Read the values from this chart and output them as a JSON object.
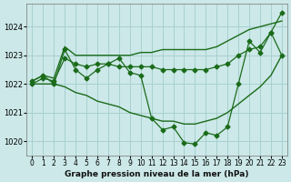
{
  "title": "Graphe pression niveau de la mer (hPa)",
  "x_labels": [
    "0",
    "1",
    "2",
    "3",
    "4",
    "5",
    "6",
    "7",
    "8",
    "9",
    "10",
    "11",
    "12",
    "13",
    "14",
    "15",
    "16",
    "17",
    "18",
    "19",
    "20",
    "21",
    "22",
    "23"
  ],
  "ylim": [
    1019.5,
    1024.8
  ],
  "yticks": [
    1020,
    1021,
    1022,
    1023,
    1024
  ],
  "background_color": "#cce8e8",
  "grid_color": "#a8d0d0",
  "line_color": "#1a6b1a",
  "series": {
    "upper_envelope": [
      1022.1,
      1022.3,
      1022.2,
      1023.3,
      1023.0,
      1023.0,
      1023.0,
      1023.0,
      1023.0,
      1023.0,
      1023.1,
      1023.1,
      1023.2,
      1023.2,
      1023.2,
      1023.2,
      1023.2,
      1023.3,
      1023.5,
      1023.7,
      1023.9,
      1024.0,
      1024.1,
      1024.2
    ],
    "lower_envelope": [
      1022.0,
      1022.0,
      1022.0,
      1021.9,
      1021.7,
      1021.6,
      1021.4,
      1021.3,
      1021.2,
      1021.0,
      1020.9,
      1020.8,
      1020.7,
      1020.7,
      1020.6,
      1020.6,
      1020.7,
      1020.8,
      1021.0,
      1021.3,
      1021.6,
      1021.9,
      1022.3,
      1023.0
    ],
    "mid_line": [
      1022.0,
      1022.2,
      1022.1,
      1022.9,
      1022.7,
      1022.6,
      1022.7,
      1022.7,
      1022.6,
      1022.6,
      1022.6,
      1022.6,
      1022.5,
      1022.5,
      1022.5,
      1022.5,
      1022.5,
      1022.6,
      1022.7,
      1023.0,
      1023.2,
      1023.3,
      1023.8,
      1023.0
    ],
    "main_data": [
      1022.1,
      1022.3,
      1022.0,
      1023.2,
      1022.5,
      1022.2,
      1022.5,
      1022.7,
      1022.9,
      1022.4,
      1022.3,
      1020.8,
      1020.4,
      1020.5,
      1019.95,
      1019.9,
      1020.3,
      1020.2,
      1020.5,
      1022.0,
      1023.5,
      1023.1,
      1023.8,
      1024.5
    ]
  }
}
